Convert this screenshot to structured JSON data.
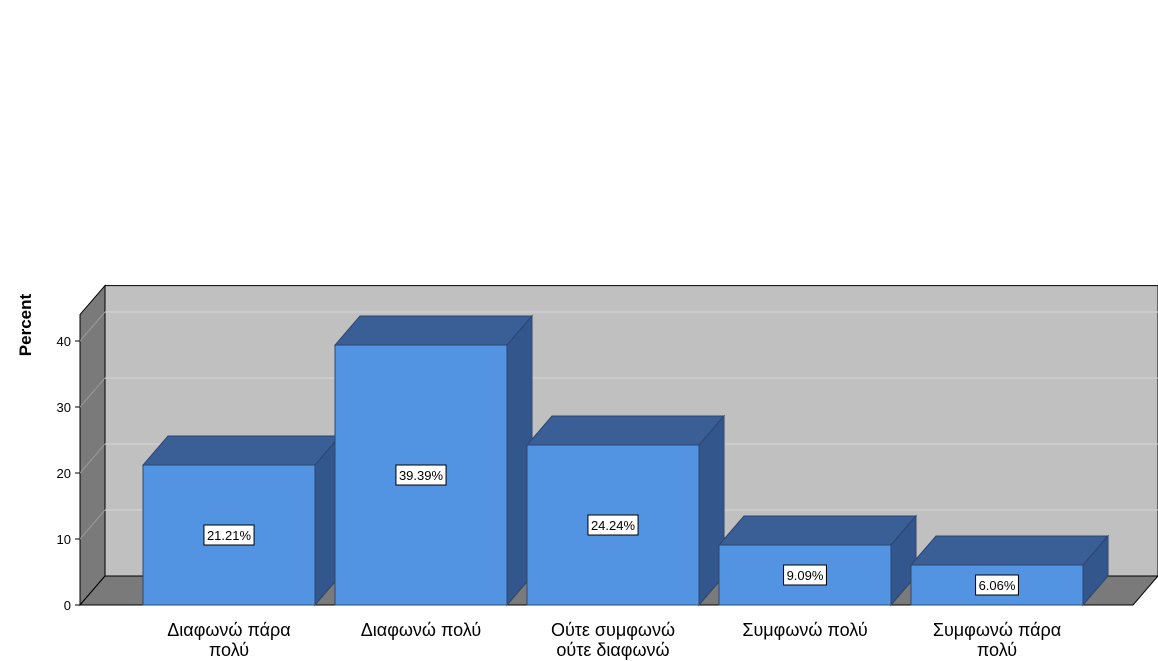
{
  "chart_data": {
    "type": "bar",
    "title": "",
    "xlabel": "",
    "ylabel": "Percent",
    "ylim": [
      0,
      44
    ],
    "yticks": [
      0,
      10,
      20,
      30,
      40
    ],
    "grid": true,
    "categories": [
      [
        "Διαφωνώ πάρα",
        "πολύ"
      ],
      [
        "Διαφωνώ πολύ"
      ],
      [
        "Ούτε συμφωνώ",
        "ούτε διαφωνώ"
      ],
      [
        "Συμφωνώ πολύ"
      ],
      [
        "Συμφωνώ πάρα",
        "πολύ"
      ]
    ],
    "values": [
      21.21,
      39.39,
      24.24,
      9.09,
      6.06
    ],
    "data_labels": [
      "21.21%",
      "39.39%",
      "24.24%",
      "9.09%",
      "6.06%"
    ],
    "colors": {
      "bar_front": "#5294e2",
      "bar_top": "#3a5f97",
      "bar_side": "#33578c",
      "bar_edge": "#2c4670",
      "plot_back": "#c0c0c0",
      "left_wall": "#7a7a7a",
      "floor": "#7a7a7a",
      "grid": "#d6d6d6",
      "outline": "#000000"
    }
  }
}
